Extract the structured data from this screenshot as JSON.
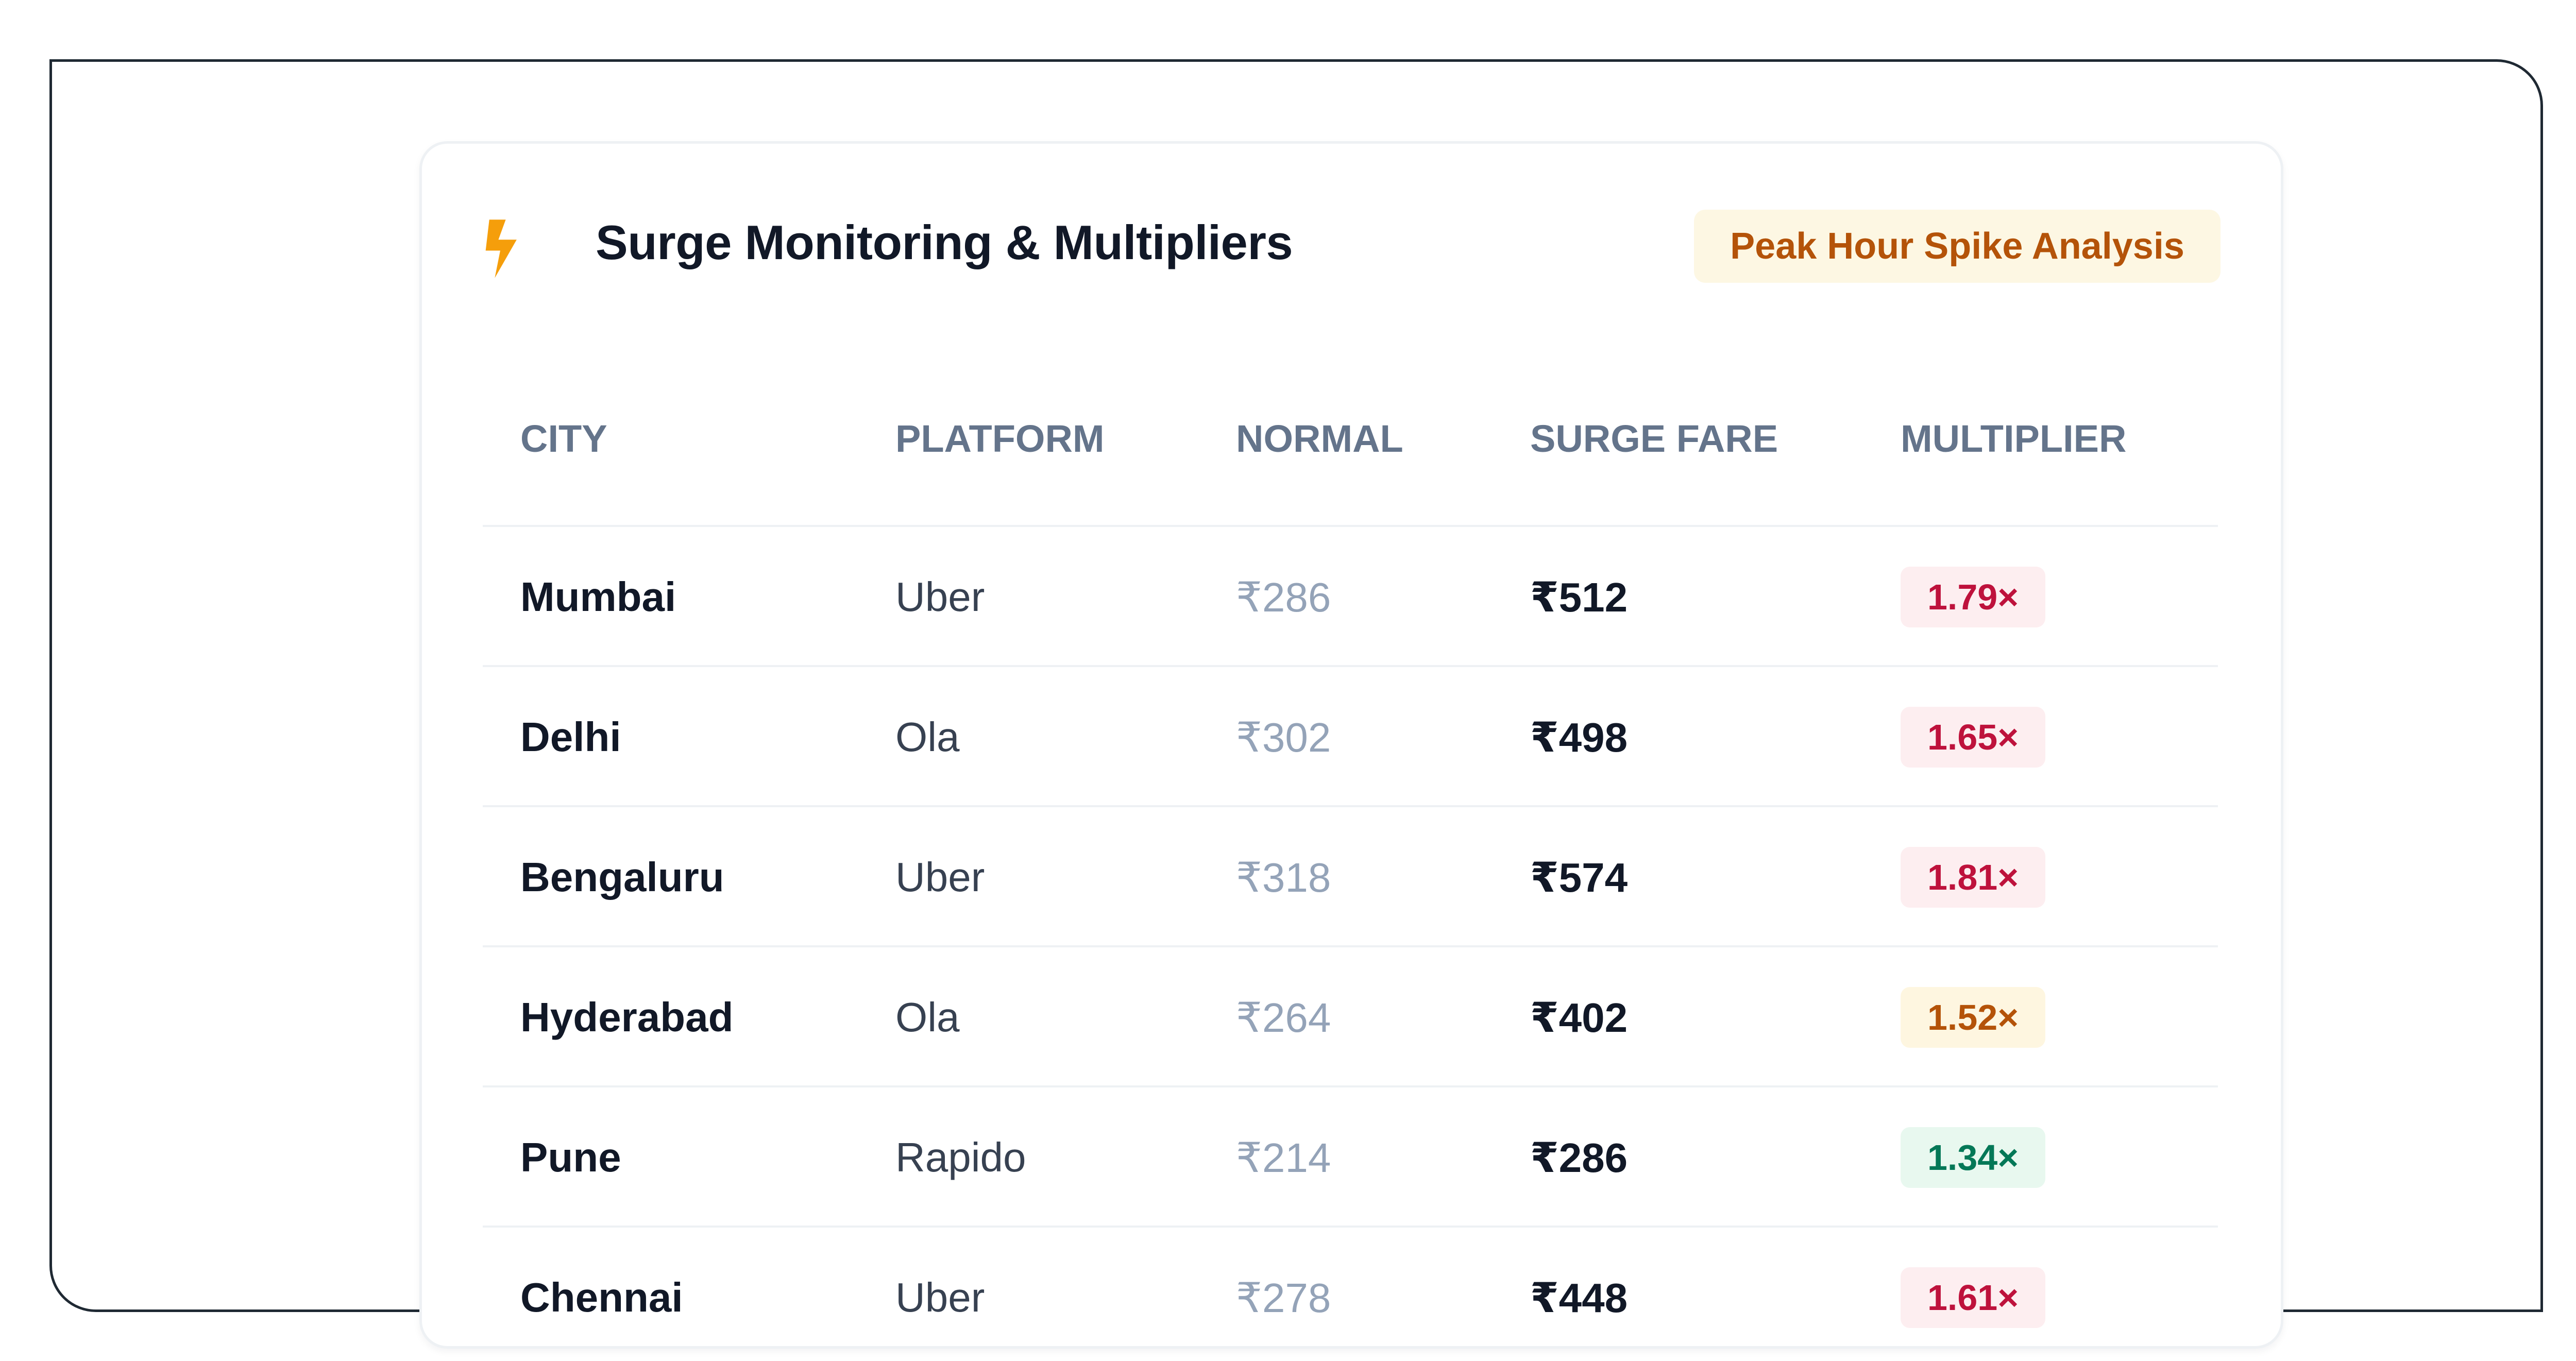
{
  "card": {
    "title": "Surge Monitoring & Multipliers",
    "icon": "lightning-bolt-icon",
    "badge": "Peak Hour Spike Analysis"
  },
  "colors": {
    "accent_orange": "#f59e0b",
    "badge_bg": "#fdf7e3",
    "badge_text": "#b45309",
    "high_bg": "#fdeef0",
    "high_text": "#be123c",
    "medium_bg": "#fef6e0",
    "medium_text": "#b45309",
    "low_bg": "#e8f8ef",
    "low_text": "#047857"
  },
  "table": {
    "columns": [
      "CITY",
      "PLATFORM",
      "NORMAL",
      "SURGE FARE",
      "MULTIPLIER"
    ],
    "rows": [
      {
        "city": "Mumbai",
        "platform": "Uber",
        "normal": "₹286",
        "surge": "₹512",
        "multiplier": "1.79×",
        "level": "high"
      },
      {
        "city": "Delhi",
        "platform": "Ola",
        "normal": "₹302",
        "surge": "₹498",
        "multiplier": "1.65×",
        "level": "high"
      },
      {
        "city": "Bengaluru",
        "platform": "Uber",
        "normal": "₹318",
        "surge": "₹574",
        "multiplier": "1.81×",
        "level": "high"
      },
      {
        "city": "Hyderabad",
        "platform": "Ola",
        "normal": "₹264",
        "surge": "₹402",
        "multiplier": "1.52×",
        "level": "medium"
      },
      {
        "city": "Pune",
        "platform": "Rapido",
        "normal": "₹214",
        "surge": "₹286",
        "multiplier": "1.34×",
        "level": "low"
      },
      {
        "city": "Chennai",
        "platform": "Uber",
        "normal": "₹278",
        "surge": "₹448",
        "multiplier": "1.61×",
        "level": "high"
      }
    ]
  }
}
